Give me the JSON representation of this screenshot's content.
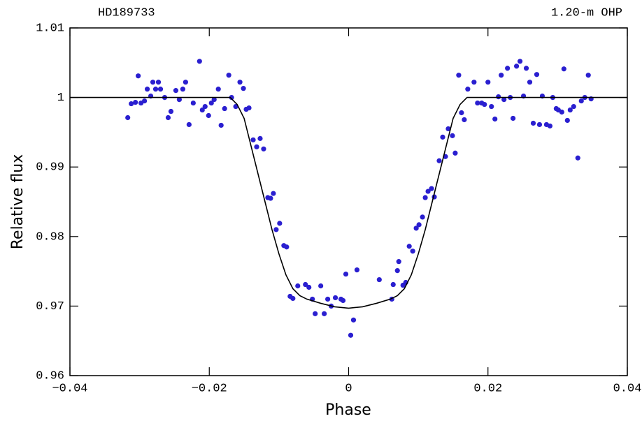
{
  "chart_data": {
    "type": "scatter",
    "title": "HD189733",
    "subtitle": "1.20-m OHP",
    "x_label": "Phase",
    "y_label": "Relative flux",
    "xlim": [
      -0.04,
      0.04
    ],
    "ylim": [
      0.96,
      1.01
    ],
    "xticks": [
      {
        "value": -0.04,
        "label": "−0.04"
      },
      {
        "value": -0.02,
        "label": "−0.02"
      },
      0,
      0.02,
      0.04
    ],
    "yticks": [
      0.96,
      0.97,
      0.98,
      0.99,
      1,
      1.01
    ],
    "grid": false,
    "series": [
      {
        "type": "scatter",
        "color": "#2a1fd0",
        "x": [
          -0.0317,
          -0.0312,
          -0.0306,
          -0.0302,
          -0.0298,
          -0.0293,
          -0.0289,
          -0.0284,
          -0.0281,
          -0.0277,
          -0.0273,
          -0.027,
          -0.0264,
          -0.0259,
          -0.0255,
          -0.0248,
          -0.0243,
          -0.0238,
          -0.0234,
          -0.0229,
          -0.0223,
          -0.0214,
          -0.021,
          -0.0206,
          -0.0201,
          -0.0197,
          -0.0193,
          -0.0187,
          -0.0183,
          -0.0178,
          -0.0172,
          -0.0168,
          -0.0162,
          -0.0156,
          -0.0151,
          -0.0147,
          -0.0143,
          -0.0137,
          -0.0132,
          -0.0127,
          -0.0122,
          -0.0116,
          -0.0112,
          -0.0108,
          -0.0104,
          -0.0099,
          -0.0093,
          -0.0089,
          -0.0084,
          -0.008,
          -0.0073,
          -0.0062,
          -0.0057,
          -0.0052,
          -0.0048,
          -0.004,
          -0.0035,
          -0.003,
          -0.0025,
          -0.0019,
          -0.0011,
          -0.0008,
          -0.0004,
          0.0003,
          0.0007,
          0.0012,
          0.0044,
          0.0062,
          0.0064,
          0.007,
          0.0072,
          0.0078,
          0.0082,
          0.0087,
          0.0092,
          0.0097,
          0.0101,
          0.0106,
          0.011,
          0.0114,
          0.0119,
          0.0123,
          0.013,
          0.0135,
          0.0139,
          0.0143,
          0.0149,
          0.0153,
          0.0158,
          0.0162,
          0.0166,
          0.0171,
          0.018,
          0.0185,
          0.0191,
          0.0195,
          0.02,
          0.0205,
          0.021,
          0.0215,
          0.0219,
          0.0223,
          0.0228,
          0.0232,
          0.0236,
          0.0241,
          0.0246,
          0.0251,
          0.0255,
          0.026,
          0.0265,
          0.027,
          0.0274,
          0.0278,
          0.0284,
          0.0289,
          0.0293,
          0.0298,
          0.0301,
          0.0306,
          0.0309,
          0.0314,
          0.0318,
          0.0323,
          0.0329,
          0.0334,
          0.0339,
          0.0344,
          0.0348
        ],
        "values": [
          0.9971,
          0.9991,
          0.9993,
          1.0031,
          0.9992,
          0.9995,
          1.0012,
          1.0002,
          1.0022,
          1.0012,
          1.0022,
          1.0012,
          1.0,
          0.9971,
          0.998,
          1.001,
          0.9997,
          1.0012,
          1.0022,
          0.9961,
          0.9992,
          1.0052,
          0.9982,
          0.9987,
          0.9974,
          0.9992,
          0.9997,
          1.0012,
          0.996,
          0.9984,
          1.0032,
          1.0,
          0.9987,
          1.0022,
          1.0013,
          0.9983,
          0.9985,
          0.9939,
          0.9929,
          0.9941,
          0.9926,
          0.9856,
          0.9855,
          0.9862,
          0.981,
          0.9819,
          0.9787,
          0.9785,
          0.9714,
          0.9711,
          0.9729,
          0.9731,
          0.9727,
          0.971,
          0.9689,
          0.9729,
          0.9689,
          0.971,
          0.97,
          0.9712,
          0.971,
          0.9708,
          0.9746,
          0.9658,
          0.968,
          0.9752,
          0.9738,
          0.971,
          0.9731,
          0.9751,
          0.9764,
          0.973,
          0.9734,
          0.9786,
          0.9779,
          0.9812,
          0.9817,
          0.9828,
          0.9856,
          0.9865,
          0.9869,
          0.9857,
          0.9909,
          0.9943,
          0.9915,
          0.9955,
          0.9945,
          0.992,
          1.0032,
          0.9978,
          0.9968,
          1.0012,
          1.0022,
          0.9992,
          0.9992,
          0.999,
          1.0022,
          0.9987,
          0.9969,
          1.0001,
          1.0032,
          0.9997,
          1.0042,
          1.0,
          0.997,
          1.0045,
          1.0052,
          1.0002,
          1.0042,
          1.0022,
          0.9963,
          1.0033,
          0.9961,
          1.0002,
          0.9961,
          0.9959,
          1.0,
          0.9984,
          0.9982,
          0.9979,
          1.0041,
          0.9967,
          0.9982,
          0.9987,
          0.9913,
          0.9995,
          1.0,
          1.0032,
          0.9998
        ]
      },
      {
        "type": "line",
        "color": "#000000",
        "x": [
          -0.04,
          -0.017,
          -0.016,
          -0.015,
          -0.014,
          -0.013,
          -0.012,
          -0.011,
          -0.01,
          -0.009,
          -0.008,
          -0.007,
          -0.006,
          -0.004,
          -0.002,
          0,
          0.002,
          0.004,
          0.006,
          0.007,
          0.008,
          0.009,
          0.01,
          0.011,
          0.012,
          0.013,
          0.014,
          0.015,
          0.016,
          0.017,
          0.04
        ],
        "values": [
          1,
          1,
          0.999,
          0.997,
          0.993,
          0.989,
          0.985,
          0.981,
          0.9775,
          0.9745,
          0.9725,
          0.9715,
          0.971,
          0.9704,
          0.9699,
          0.9697,
          0.9699,
          0.9704,
          0.971,
          0.9715,
          0.9725,
          0.9745,
          0.9775,
          0.981,
          0.985,
          0.989,
          0.993,
          0.997,
          0.999,
          1,
          1
        ]
      }
    ]
  }
}
